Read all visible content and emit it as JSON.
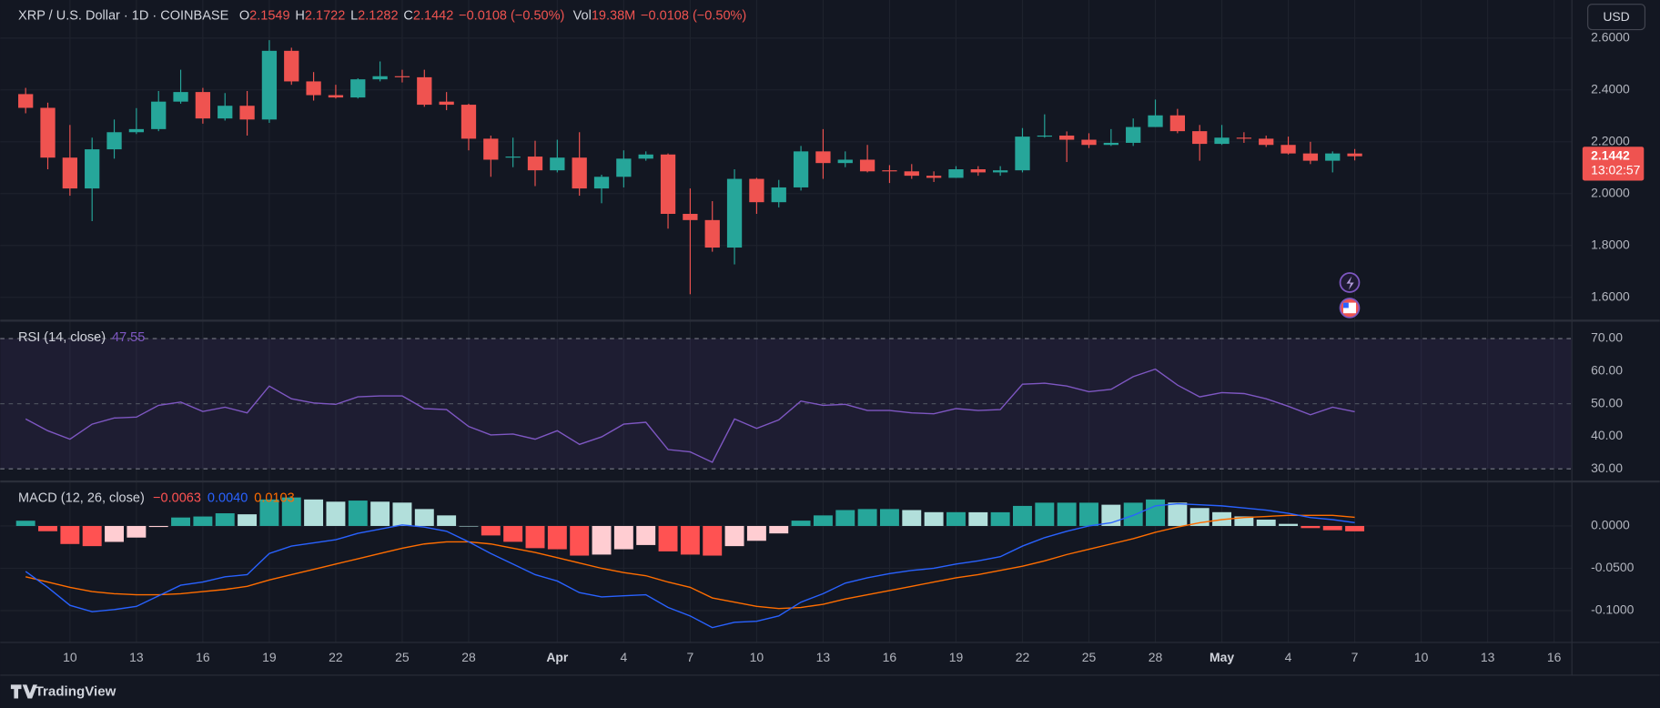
{
  "header": {
    "symbol": "XRP / U.S. Dollar · 1D · COINBASE",
    "change": "−0.0108 (−0.50%)",
    "volume_label": "Vol",
    "volume": "19.38M",
    "volume_change": "−0.0108 (−0.50%)"
  },
  "currency": "USD",
  "brand": "TradingView",
  "chart_data": [
    {
      "type": "candlestick",
      "ohlc_labels": [
        "O",
        "H",
        "L",
        "C"
      ],
      "categories": [
        null,
        null,
        "10",
        null,
        null,
        "13",
        null,
        null,
        "16",
        null,
        null,
        "19",
        null,
        null,
        "22",
        null,
        null,
        "25",
        null,
        null,
        "28",
        null,
        null,
        null,
        "Apr",
        null,
        null,
        "4",
        null,
        null,
        "7",
        null,
        null,
        "10",
        null,
        null,
        "13",
        null,
        null,
        "16",
        null,
        null,
        "19",
        null,
        null,
        "22",
        null,
        null,
        "25",
        null,
        null,
        "28",
        null,
        null,
        "May",
        null,
        null,
        "4",
        null,
        null,
        "7",
        null,
        null,
        "10",
        null,
        null,
        "13",
        null,
        null,
        "16",
        null
      ],
      "open": [
        2.384,
        2.331,
        2.139,
        2.02,
        2.171,
        2.237,
        2.249,
        2.355,
        2.392,
        2.29,
        2.339,
        2.286,
        2.551,
        2.433,
        2.38,
        2.371,
        2.441,
        2.453,
        2.449,
        2.355,
        2.343,
        2.212,
        2.139,
        2.143,
        2.09,
        2.139,
        2.02,
        2.065,
        2.135,
        2.151,
        1.922,
        1.898,
        1.792,
        2.057,
        1.967,
        2.024,
        2.163,
        2.118,
        2.131,
        2.09,
        2.086,
        2.069,
        2.061,
        2.094,
        2.082,
        2.09,
        2.22,
        2.224,
        2.208,
        2.188,
        2.196,
        2.257,
        2.302,
        2.241,
        2.192,
        2.216,
        2.212,
        2.188,
        2.155,
        2.127,
        2.1549,
        null,
        null,
        null,
        null,
        null,
        null,
        null,
        null,
        null,
        null
      ],
      "high": [
        2.408,
        2.351,
        2.265,
        2.216,
        2.286,
        2.33,
        2.396,
        2.478,
        2.408,
        2.388,
        2.396,
        2.592,
        2.563,
        2.469,
        2.42,
        2.445,
        2.51,
        2.478,
        2.478,
        2.392,
        2.347,
        2.224,
        2.216,
        2.204,
        2.208,
        2.237,
        2.073,
        2.167,
        2.163,
        2.155,
        2.02,
        1.971,
        2.094,
        2.061,
        2.053,
        2.184,
        2.249,
        2.163,
        2.188,
        2.11,
        2.114,
        2.086,
        2.106,
        2.106,
        2.106,
        2.253,
        2.306,
        2.24,
        2.233,
        2.249,
        2.29,
        2.363,
        2.327,
        2.265,
        2.265,
        2.237,
        2.224,
        2.22,
        2.2,
        2.163,
        2.1722,
        null,
        null,
        null,
        null,
        null,
        null,
        null,
        null,
        null,
        null
      ],
      "low": [
        2.31,
        2.094,
        1.992,
        1.894,
        2.135,
        2.23,
        2.241,
        2.347,
        2.27,
        2.282,
        2.224,
        2.273,
        2.42,
        2.359,
        2.367,
        2.367,
        2.433,
        2.429,
        2.335,
        2.322,
        2.167,
        2.065,
        2.102,
        2.029,
        2.082,
        1.992,
        1.963,
        2.024,
        2.127,
        1.865,
        1.612,
        1.776,
        1.727,
        1.922,
        1.947,
        2.012,
        2.057,
        2.102,
        2.082,
        2.041,
        2.057,
        2.045,
        2.061,
        2.069,
        2.069,
        2.082,
        2.216,
        2.122,
        2.176,
        2.184,
        2.184,
        2.257,
        2.233,
        2.127,
        2.188,
        2.196,
        2.18,
        2.151,
        2.114,
        2.082,
        2.1282,
        null,
        null,
        null,
        null,
        null,
        null,
        null,
        null,
        null,
        null
      ],
      "close": [
        2.331,
        2.139,
        2.02,
        2.171,
        2.237,
        2.249,
        2.355,
        2.392,
        2.29,
        2.339,
        2.286,
        2.551,
        2.433,
        2.38,
        2.371,
        2.441,
        2.453,
        2.449,
        2.343,
        2.343,
        2.212,
        2.131,
        2.143,
        2.09,
        2.139,
        2.02,
        2.065,
        2.135,
        2.151,
        1.922,
        1.898,
        1.792,
        2.057,
        1.967,
        2.024,
        2.163,
        2.118,
        2.131,
        2.086,
        2.086,
        2.069,
        2.061,
        2.094,
        2.082,
        2.09,
        2.22,
        2.224,
        2.208,
        2.188,
        2.196,
        2.257,
        2.302,
        2.241,
        2.192,
        2.216,
        2.212,
        2.188,
        2.155,
        2.127,
        2.155,
        2.1442,
        null,
        null,
        null,
        null,
        null,
        null,
        null,
        null,
        null,
        null
      ],
      "up_color": "#26a69a",
      "down_color": "#ef5350",
      "ylim": [
        1.51,
        2.747
      ],
      "yticks": [
        {
          "value": 1.6,
          "label": "1.6000"
        },
        {
          "value": 1.8,
          "label": "1.8000"
        },
        {
          "value": 2.0,
          "label": "2.0000"
        },
        {
          "value": 2.2,
          "label": "2.2000"
        },
        {
          "value": 2.4,
          "label": "2.4000"
        },
        {
          "value": 2.6,
          "label": "2.6000"
        }
      ],
      "countdown": "13:02:57"
    },
    {
      "type": "line",
      "title": "RSI (14, close)",
      "color": "#7e57c2",
      "values": [
        45.3,
        41.7,
        39.1,
        43.7,
        45.6,
        45.9,
        49.5,
        50.5,
        47.6,
        48.9,
        47.2,
        55.4,
        51.5,
        50.2,
        49.8,
        52.1,
        52.4,
        52.4,
        48.5,
        48.2,
        43.0,
        40.4,
        40.7,
        39.1,
        41.7,
        37.5,
        39.8,
        43.7,
        44.3,
        35.9,
        35.2,
        32.0,
        45.3,
        42.4,
        45.0,
        50.8,
        49.5,
        49.8,
        47.9,
        47.9,
        47.2,
        46.9,
        48.5,
        47.9,
        48.2,
        56.0,
        56.3,
        55.4,
        53.7,
        54.4,
        58.3,
        60.6,
        55.7,
        52.1,
        53.4,
        53.1,
        51.5,
        49.2,
        46.6,
        48.9,
        47.55,
        null,
        null,
        null,
        null,
        null,
        null,
        null,
        null,
        null,
        null
      ],
      "ylim": [
        26.1,
        75.5
      ],
      "yticks": [
        {
          "value": 30,
          "label": "30.00"
        },
        {
          "value": 40,
          "label": "40.00"
        },
        {
          "value": 50,
          "label": "50.00"
        },
        {
          "value": 60,
          "label": "60.00"
        },
        {
          "value": 70,
          "label": "70.00"
        }
      ]
    },
    {
      "type": "macd",
      "title": "MACD (12, 26, close)",
      "histogram": [
        0.0062,
        -0.0062,
        -0.0213,
        -0.0238,
        -0.0188,
        -0.0137,
        -0.0012,
        0.01,
        0.0112,
        0.015,
        0.0138,
        0.0313,
        0.0337,
        0.0313,
        0.0287,
        0.03,
        0.0287,
        0.0276,
        0.02,
        0.0125,
        0,
        -0.0112,
        -0.0187,
        -0.0262,
        -0.0275,
        -0.035,
        -0.0338,
        -0.0275,
        -0.0225,
        -0.03,
        -0.0338,
        -0.035,
        -0.0238,
        -0.0175,
        -0.0088,
        0.0063,
        0.0125,
        0.0188,
        0.02,
        0.02,
        0.0188,
        0.0163,
        0.0163,
        0.0162,
        0.0162,
        0.0237,
        0.0275,
        0.0275,
        0.0275,
        0.0251,
        0.0275,
        0.0313,
        0.0276,
        0.0212,
        0.0163,
        0.0113,
        0.0075,
        0.0025,
        -0.0025,
        -0.005,
        -0.0063,
        null,
        null,
        null,
        null,
        null,
        null,
        null,
        null,
        null,
        null
      ],
      "macd": [
        -0.0538,
        -0.0725,
        -0.0938,
        -0.1013,
        -0.0988,
        -0.095,
        -0.0825,
        -0.07,
        -0.0663,
        -0.06,
        -0.0575,
        -0.0325,
        -0.0238,
        -0.02,
        -0.0163,
        -0.0088,
        -0.0038,
        0.0013,
        -0.0013,
        -0.0063,
        -0.0188,
        -0.0325,
        -0.045,
        -0.0575,
        -0.065,
        -0.0788,
        -0.0838,
        -0.0825,
        -0.0813,
        -0.0963,
        -0.1063,
        -0.12,
        -0.1138,
        -0.1125,
        -0.1063,
        -0.09,
        -0.08,
        -0.0675,
        -0.0613,
        -0.0563,
        -0.0525,
        -0.05,
        -0.045,
        -0.0413,
        -0.0363,
        -0.0238,
        -0.0138,
        -0.0063,
        0,
        0.0038,
        0.0125,
        0.0238,
        0.0263,
        0.025,
        0.0238,
        0.0213,
        0.0188,
        0.015,
        0.01,
        0.0075,
        0.004,
        null,
        null,
        null,
        null,
        null,
        null,
        null,
        null,
        null,
        null
      ],
      "signal": [
        -0.06,
        -0.0663,
        -0.0725,
        -0.0775,
        -0.08,
        -0.0813,
        -0.0813,
        -0.08,
        -0.0775,
        -0.075,
        -0.0713,
        -0.0638,
        -0.0575,
        -0.0513,
        -0.045,
        -0.0388,
        -0.0325,
        -0.0263,
        -0.0213,
        -0.0188,
        -0.0188,
        -0.0213,
        -0.0263,
        -0.0313,
        -0.0375,
        -0.0438,
        -0.05,
        -0.055,
        -0.0588,
        -0.0663,
        -0.0725,
        -0.085,
        -0.09,
        -0.095,
        -0.0975,
        -0.0963,
        -0.0925,
        -0.0863,
        -0.0813,
        -0.0763,
        -0.0713,
        -0.0663,
        -0.0613,
        -0.0575,
        -0.0525,
        -0.0475,
        -0.0413,
        -0.0338,
        -0.0275,
        -0.0213,
        -0.015,
        -0.0075,
        -0.0013,
        0.0038,
        0.0075,
        0.01,
        0.0113,
        0.0125,
        0.0125,
        0.0125,
        0.0103,
        null,
        null,
        null,
        null,
        null,
        null,
        null,
        null,
        null,
        null
      ],
      "value_labels": {
        "histogram": "−0.0063",
        "macd": "0.0040",
        "signal": "0.0103"
      },
      "colors": {
        "macd": "#2962ff",
        "signal": "#ff6d00",
        "up_strong": "#26a69a",
        "up_weak": "#b2dfdb",
        "down_strong": "#ff5252",
        "down_weak": "#ffcdd2"
      },
      "ylim": [
        -0.1375,
        0.0525
      ],
      "yticks": [
        {
          "value": -0.1,
          "label": "-0.1000"
        },
        {
          "value": -0.05,
          "label": "-0.0500"
        },
        {
          "value": 0,
          "label": "0.0000"
        }
      ]
    }
  ]
}
